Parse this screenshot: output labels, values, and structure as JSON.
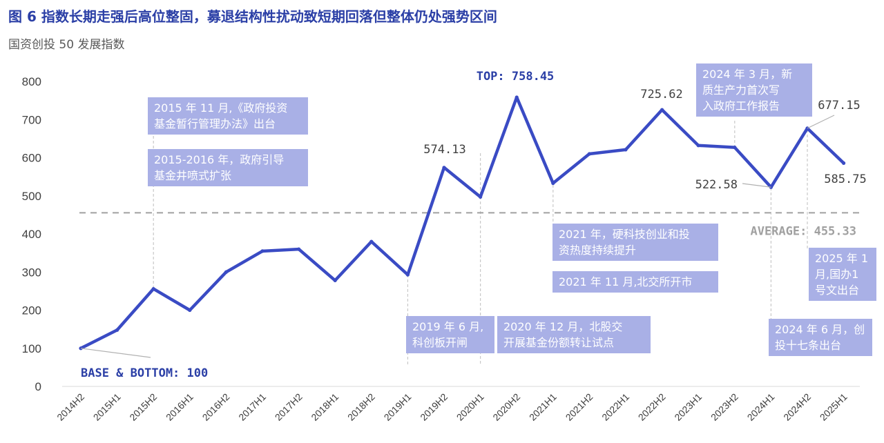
{
  "header": {
    "title": "图 6 指数长期走强后高位整固，募退结构性扰动致短期回落但整体仍处强势区间",
    "subtitle": "国资创投 50 发展指数"
  },
  "colors": {
    "line": "#3A4BC4",
    "emph": "#2B3FA6",
    "note_bg": "#A9B0E6",
    "avg_line": "#A0A0A0",
    "guide": "#C8C8C8"
  },
  "chart_data": {
    "type": "line",
    "title": "国资创投 50 发展指数",
    "categories": [
      "2014H2",
      "2015H1",
      "2015H2",
      "2016H1",
      "2016H2",
      "2017H1",
      "2017H2",
      "2018H1",
      "2018H2",
      "2019H1",
      "2019H2",
      "2020H1",
      "2020H2",
      "2021H1",
      "2021H2",
      "2022H1",
      "2022H2",
      "2023H1",
      "2023H2",
      "2024H1",
      "2024H2",
      "2025H1"
    ],
    "series": [
      {
        "name": "国资创投 50 发展指数",
        "values": [
          100,
          148,
          256,
          200,
          300,
          355,
          360,
          278,
          380,
          293,
          574.13,
          497,
          758.45,
          533,
          610,
          621,
          725.62,
          632,
          627,
          522.58,
          677.15,
          585.75
        ]
      }
    ],
    "ylim": [
      0,
      800
    ],
    "yticks": [
      0,
      100,
      200,
      300,
      400,
      500,
      600,
      700,
      800
    ],
    "average": {
      "value": 455.33,
      "label": "AVERAGE: 455.33"
    },
    "data_labels": [
      {
        "index": 10,
        "text": "574.13",
        "style": "plain"
      },
      {
        "index": 12,
        "text": "TOP: 758.45",
        "style": "emph"
      },
      {
        "index": 16,
        "text": "725.62",
        "style": "plain"
      },
      {
        "index": 19,
        "text": "522.58",
        "style": "plain"
      },
      {
        "index": 20,
        "text": "677.15",
        "style": "plain"
      },
      {
        "index": 21,
        "text": "585.75",
        "style": "plain"
      },
      {
        "index": 0,
        "text": "BASE & BOTTOM: 100",
        "style": "emph"
      }
    ],
    "annotations": [
      {
        "text": [
          "2015 年 11 月,《政府投资",
          "基金暂行管理办法》出台"
        ]
      },
      {
        "text": [
          "2015-2016 年，政府引导",
          "基金井喷式扩张"
        ]
      },
      {
        "text": [
          "2019 年 6 月,",
          "科创板开闸"
        ]
      },
      {
        "text": [
          "2020 年 12 月，北股交",
          "开展基金份额转让试点"
        ]
      },
      {
        "text": [
          "2021 年，硬科技创业和投",
          "资热度持续提升"
        ]
      },
      {
        "text": [
          "2021 年 11 月,北交所开市"
        ]
      },
      {
        "text": [
          "2024 年 3 月，新",
          "质生产力首次写",
          "入政府工作报告"
        ]
      },
      {
        "text": [
          "2024 年 6 月，创",
          "投十七条出台"
        ]
      },
      {
        "text": [
          "2025 年 1",
          "月,国办1",
          "号文出台"
        ]
      }
    ]
  }
}
